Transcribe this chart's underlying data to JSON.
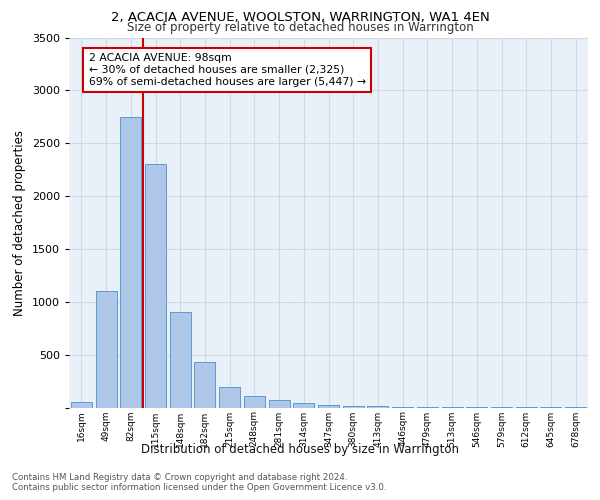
{
  "title": "2, ACACIA AVENUE, WOOLSTON, WARRINGTON, WA1 4EN",
  "subtitle": "Size of property relative to detached houses in Warrington",
  "xlabel": "Distribution of detached houses by size in Warrington",
  "ylabel": "Number of detached properties",
  "bar_labels": [
    "16sqm",
    "49sqm",
    "82sqm",
    "115sqm",
    "148sqm",
    "182sqm",
    "215sqm",
    "248sqm",
    "281sqm",
    "314sqm",
    "347sqm",
    "380sqm",
    "413sqm",
    "446sqm",
    "479sqm",
    "513sqm",
    "546sqm",
    "579sqm",
    "612sqm",
    "645sqm",
    "678sqm"
  ],
  "bar_values": [
    50,
    1100,
    2750,
    2300,
    900,
    430,
    190,
    110,
    70,
    45,
    25,
    15,
    10,
    7,
    5,
    3,
    2,
    2,
    1,
    1,
    1
  ],
  "bar_color": "#aec6e8",
  "bar_edge_color": "#5b9bd5",
  "annotation_box_text": "2 ACACIA AVENUE: 98sqm\n← 30% of detached houses are smaller (2,325)\n69% of semi-detached houses are larger (5,447) →",
  "annotation_box_color": "#ffffff",
  "annotation_box_edge_color": "#cc0000",
  "red_line_color": "#cc0000",
  "grid_color": "#d0d8e8",
  "background_color": "#eaf0f8",
  "ylim": [
    0,
    3500
  ],
  "yticks": [
    0,
    500,
    1000,
    1500,
    2000,
    2500,
    3000,
    3500
  ],
  "footer_line1": "Contains HM Land Registry data © Crown copyright and database right 2024.",
  "footer_line2": "Contains public sector information licensed under the Open Government Licence v3.0."
}
